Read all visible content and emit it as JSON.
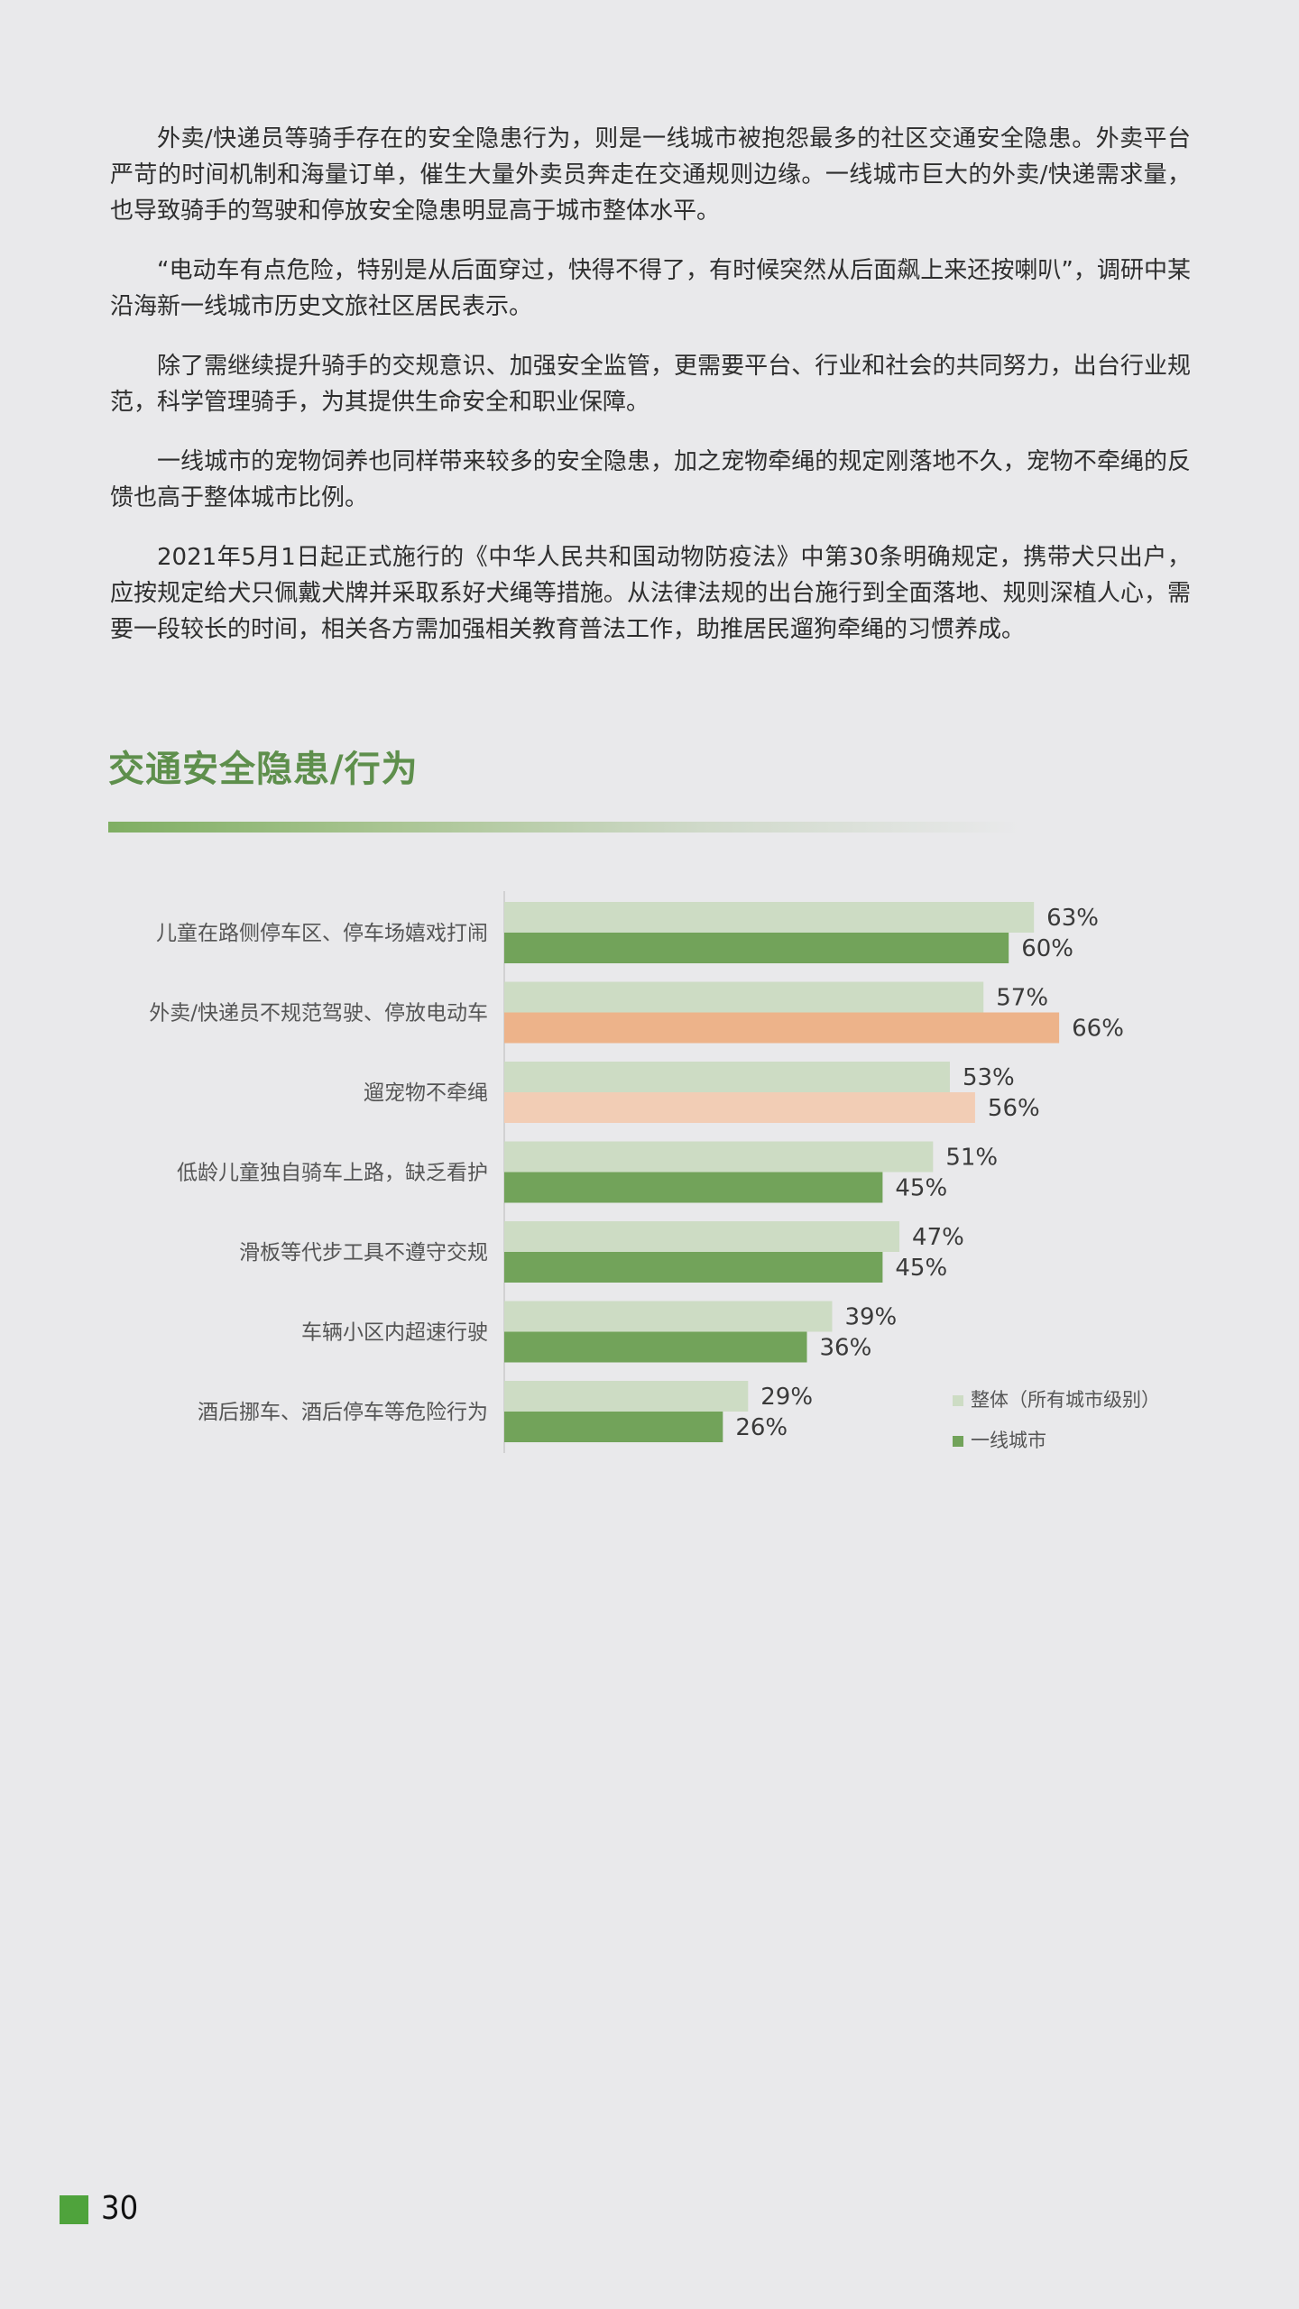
{
  "paragraphs": [
    "外卖/快递员等骑手存在的安全隐患行为，则是一线城市被抱怨最多的社区交通安全隐患。外卖平台严苛的时间机制和海量订单，催生大量外卖员奔走在交通规则边缘。一线城市巨大的外卖/快递需求量，也导致骑手的驾驶和停放安全隐患明显高于城市整体水平。",
    "“电动车有点危险，特别是从后面穿过，快得不得了，有时候突然从后面飙上来还按喇叭”，调研中某沿海新一线城市历史文旅社区居民表示。",
    "除了需继续提升骑手的交规意识、加强安全监管，更需要平台、行业和社会的共同努力，出台行业规范，科学管理骑手，为其提供生命安全和职业保障。",
    "一线城市的宠物饲养也同样带来较多的安全隐患，加之宠物牵绳的规定刚落地不久，宠物不牵绳的反馈也高于整体城市比例。",
    "2021年5月1日起正式施行的《中华人民共和国动物防疫法》中第30条明确规定，携带犬只出户，应按规定给犬只佩戴犬牌并采取系好犬绳等措施。从法律法规的出台施行到全面落地、规则深植人心，需要一段较长的时间，相关各方需加强相关教育普法工作，助推居民遛狗牵绳的习惯养成。"
  ],
  "section_title": "交通安全隐患/行为",
  "page_number": "30",
  "colors": {
    "overall": "#cddcc4",
    "tier1": "#72a35a",
    "highlight_overall": "#f2cdb5",
    "highlight_tier1": "#edb38a",
    "title": "#5e8f4c",
    "page_square": "#4fa33c"
  },
  "chart_data": {
    "type": "bar",
    "orientation": "horizontal",
    "categories": [
      "儿童在路侧停车区、停车场嬉戏打闹",
      "外卖/快递员不规范驾驶、停放电动车",
      "遛宠物不牵绳",
      "低龄儿童独自骑车上路，缺乏看护",
      "滑板等代步工具不遵守交规",
      "车辆小区内超速行驶",
      "酒后挪车、酒后停车等危险行为"
    ],
    "series": [
      {
        "name": "整体（所有城市级别）",
        "values": [
          63,
          57,
          53,
          51,
          47,
          39,
          29
        ],
        "labels": [
          "63%",
          "57%",
          "53%",
          "51%",
          "47%",
          "39%",
          "29%"
        ]
      },
      {
        "name": "一线城市",
        "values": [
          60,
          66,
          56,
          45,
          45,
          36,
          26
        ],
        "labels": [
          "60%",
          "66%",
          "56%",
          "45%",
          "45%",
          "36%",
          "26%"
        ]
      }
    ],
    "highlight": {
      "category": "外卖/快递员不规范驾驶、停放电动车",
      "series": "一线城市"
    },
    "highlight_light": {
      "category": "遛宠物不牵绳",
      "series": "一线城市"
    },
    "unit": "%",
    "xlim": [
      0,
      100
    ],
    "grid": false,
    "legend_position": "bottom-right"
  }
}
